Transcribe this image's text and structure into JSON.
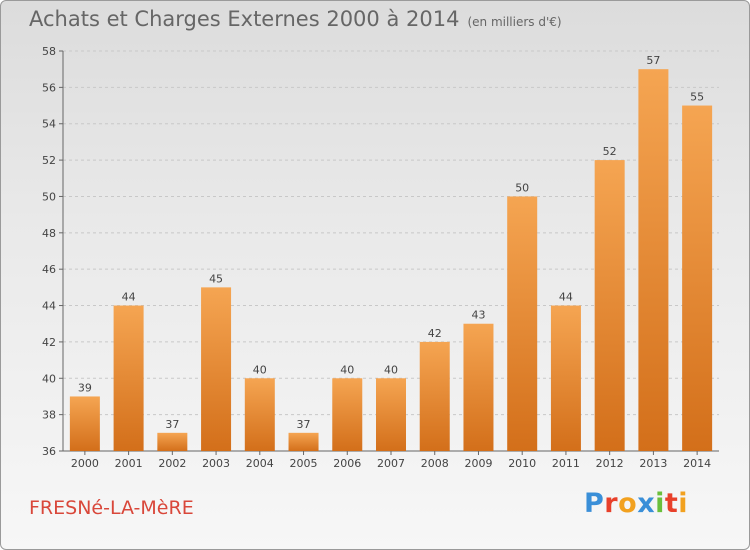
{
  "header": {
    "title": "Achats et Charges Externes 2000 à 2014",
    "unit": "(en milliers d'€)"
  },
  "footer": {
    "town": "FRESNé-LA-MèRE",
    "brand_letters": [
      "P",
      "r",
      "o",
      "x",
      "i",
      "t",
      "i"
    ],
    "brand_colors": [
      "#3a8fd8",
      "#e8402a",
      "#f2a11f",
      "#3a8fd8",
      "#6abf3c",
      "#e8402a",
      "#f2a11f"
    ]
  },
  "colors": {
    "bar_light": "#f5a552",
    "bar_dark": "#d36f1a",
    "grid": "#c8c8c8",
    "town": "#d9473a"
  },
  "chart_data": {
    "type": "bar",
    "title": "Achats et Charges Externes 2000 à 2014",
    "xlabel": "",
    "ylabel": "",
    "categories": [
      "2000",
      "2001",
      "2002",
      "2003",
      "2004",
      "2005",
      "2006",
      "2007",
      "2008",
      "2009",
      "2010",
      "2011",
      "2012",
      "2013",
      "2014"
    ],
    "values": [
      39,
      44,
      37,
      45,
      40,
      37,
      40,
      40,
      42,
      43,
      50,
      44,
      52,
      57,
      55
    ],
    "ylim": [
      36,
      58
    ],
    "yticks": [
      36,
      38,
      40,
      42,
      44,
      46,
      48,
      50,
      52,
      54,
      56,
      58
    ],
    "grid": true,
    "data_labels": true
  }
}
